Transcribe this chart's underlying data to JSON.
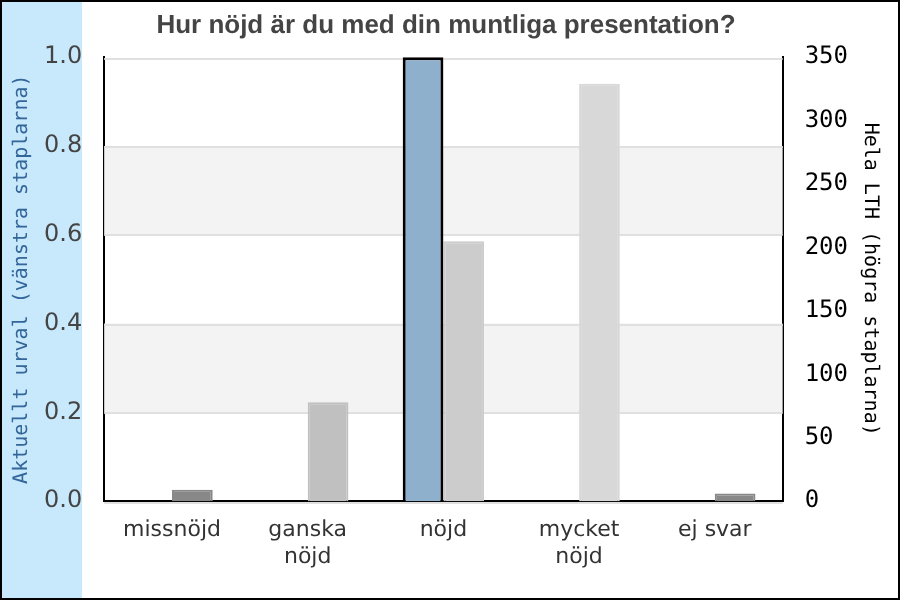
{
  "chart_data": {
    "type": "bar",
    "title": "Hur nöjd är du med din muntliga presentation?",
    "ylabel": "Aktuellt urval (vänstra staplarna)",
    "y2label": "Hela LTH (högra staplarna)",
    "categories": [
      "missnöjd",
      "ganska nöjd",
      "nöjd",
      "mycket nöjd",
      "ej svar"
    ],
    "series": [
      {
        "color": "#8fb0cc",
        "values": [
          0,
          0,
          1.0,
          0,
          0
        ]
      },
      {
        "axis": "y2",
        "colors": [
          "#888888",
          "#c0c0c0",
          "#cccccc",
          "#d8d8d8",
          "#888888"
        ],
        "values": [
          9,
          78,
          205,
          329,
          6
        ]
      }
    ],
    "ylim": [
      0,
      1
    ],
    "yticks": [
      {
        "value": 0,
        "label": "0.0"
      },
      0.2,
      0.4,
      0.6,
      0.8,
      {
        "value": 1,
        "label": "1.0"
      }
    ],
    "y2lim": [
      0,
      350
    ],
    "y2ticks": [
      0,
      50,
      100,
      150,
      200,
      250,
      300,
      350
    ],
    "grid": "y",
    "legend": false
  }
}
